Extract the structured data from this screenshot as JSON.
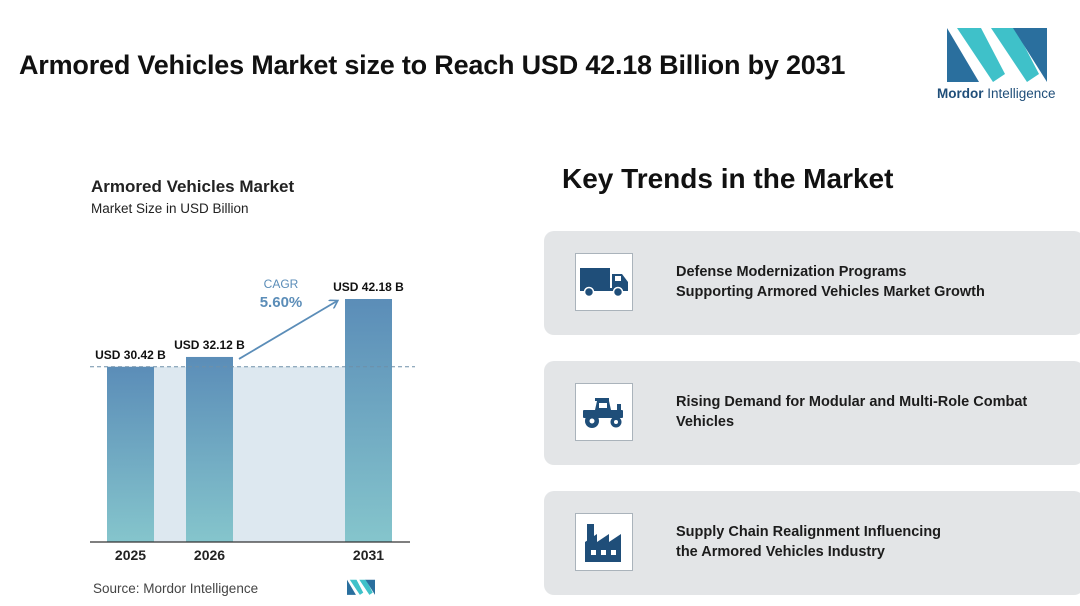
{
  "header": {
    "title": "Armored Vehicles Market size to Reach USD 42.18 Billion by 2031",
    "logo_brand": "Mordor",
    "logo_suffix": "Intelligence"
  },
  "chart": {
    "title": "Armored Vehicles Market",
    "subtitle": "Market Size in USD Billion",
    "cagr_label": "CAGR",
    "cagr_value": "5.60%",
    "source": "Source: Mordor Intelligence"
  },
  "chart_data": {
    "type": "bar",
    "title": "Armored Vehicles Market",
    "subtitle": "Market Size in USD Billion",
    "categories": [
      "2025",
      "2026",
      "2031"
    ],
    "values": [
      30.42,
      32.12,
      42.18
    ],
    "data_labels": [
      "USD 30.42 B",
      "USD 32.12 B",
      "USD 42.18 B"
    ],
    "annotation": {
      "label": "CAGR",
      "value": "5.60%"
    },
    "ylim": [
      0,
      46
    ],
    "grid": false
  },
  "trends": {
    "title": "Key Trends in the Market",
    "items": [
      {
        "text": "Defense Modernization Programs\nSupporting Armored Vehicles Market Growth",
        "icon": "truck-icon"
      },
      {
        "text": "Rising Demand for Modular and Multi-Role Combat\nVehicles",
        "icon": "tractor-icon"
      },
      {
        "text": "Supply Chain Realignment Influencing\nthe Armored Vehicles Industry",
        "icon": "factory-icon"
      }
    ]
  },
  "colors": {
    "bar_top": "#5b8db8",
    "bar_bottom": "#85c5cc",
    "shade": "#dde8f0",
    "accent": "#5b8db8",
    "icon": "#1f4e79",
    "logo_dark": "#2a6f9e",
    "logo_light": "#3fc1c9",
    "card": "#e3e5e7"
  }
}
